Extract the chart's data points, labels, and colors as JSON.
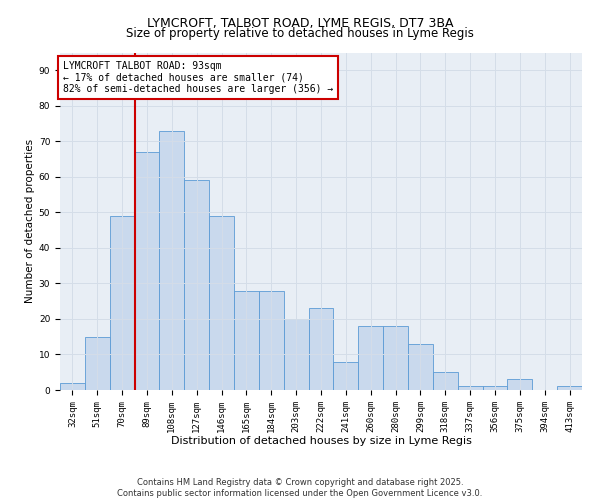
{
  "title1": "LYMCROFT, TALBOT ROAD, LYME REGIS, DT7 3BA",
  "title2": "Size of property relative to detached houses in Lyme Regis",
  "xlabel": "Distribution of detached houses by size in Lyme Regis",
  "ylabel": "Number of detached properties",
  "categories": [
    "32sqm",
    "51sqm",
    "70sqm",
    "89sqm",
    "108sqm",
    "127sqm",
    "146sqm",
    "165sqm",
    "184sqm",
    "203sqm",
    "222sqm",
    "241sqm",
    "260sqm",
    "280sqm",
    "299sqm",
    "318sqm",
    "337sqm",
    "356sqm",
    "375sqm",
    "394sqm",
    "413sqm"
  ],
  "values": [
    2,
    15,
    49,
    67,
    73,
    59,
    49,
    28,
    28,
    20,
    23,
    8,
    18,
    18,
    13,
    5,
    1,
    1,
    3,
    0,
    1
  ],
  "bar_color": "#c9d9ed",
  "bar_edge_color": "#5b9bd5",
  "vline_color": "#cc0000",
  "vline_pos": 2.5,
  "annotation_box_text": "LYMCROFT TALBOT ROAD: 93sqm\n← 17% of detached houses are smaller (74)\n82% of semi-detached houses are larger (356) →",
  "annotation_box_color": "#cc0000",
  "ylim": [
    0,
    95
  ],
  "yticks": [
    0,
    10,
    20,
    30,
    40,
    50,
    60,
    70,
    80,
    90
  ],
  "grid_color": "#d4dde8",
  "bg_color": "#e8eef5",
  "footer_line1": "Contains HM Land Registry data © Crown copyright and database right 2025.",
  "footer_line2": "Contains public sector information licensed under the Open Government Licence v3.0.",
  "title1_fontsize": 9,
  "title2_fontsize": 8.5,
  "xlabel_fontsize": 8,
  "ylabel_fontsize": 7.5,
  "tick_fontsize": 6.5,
  "annotation_fontsize": 7,
  "footer_fontsize": 6
}
